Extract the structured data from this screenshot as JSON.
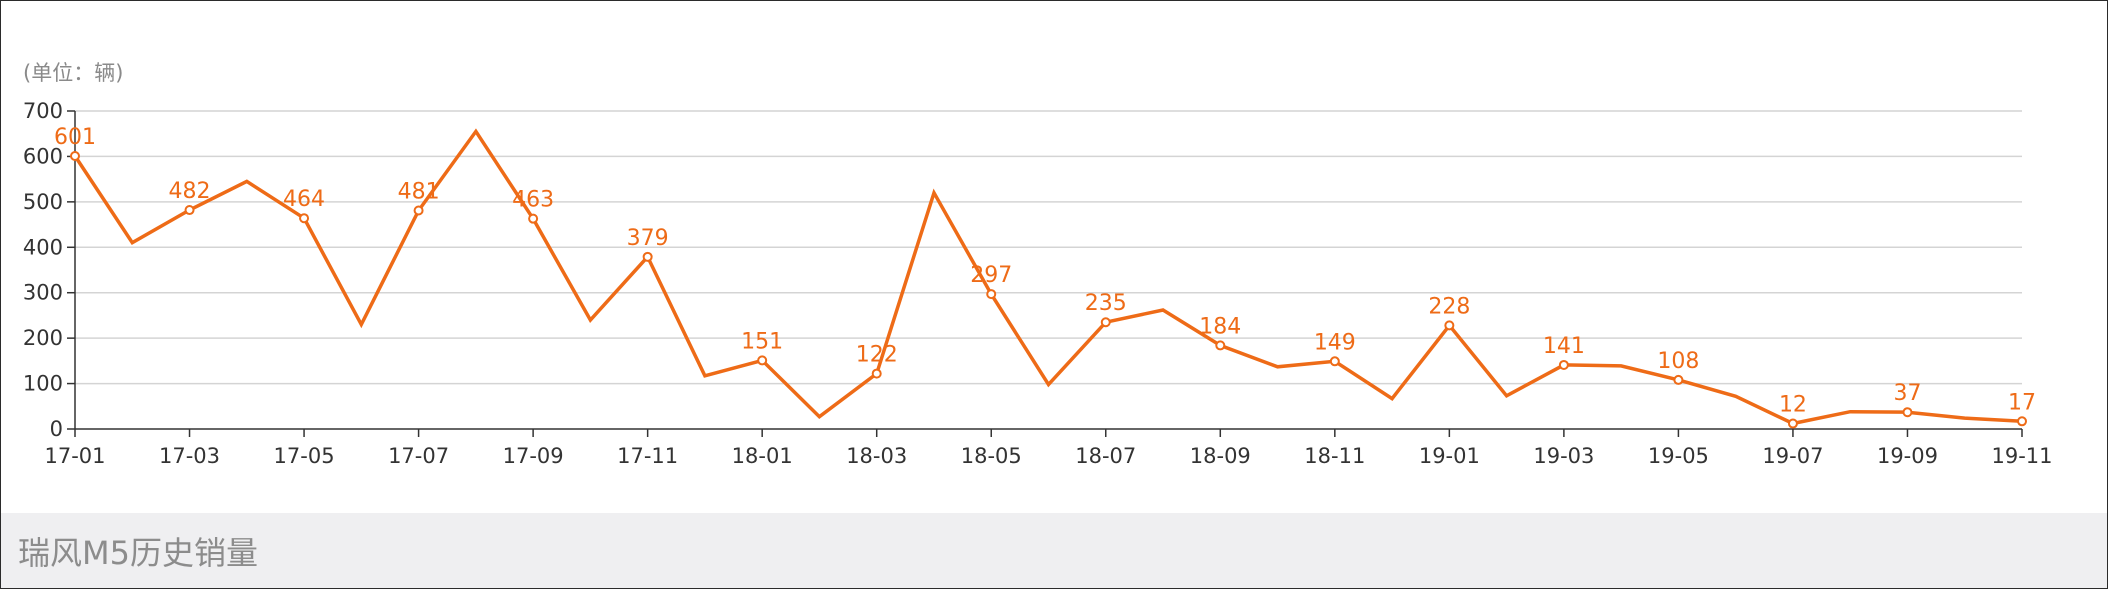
{
  "footer": {
    "caption": "瑞风M5历史销量"
  },
  "chart_data": {
    "type": "line",
    "unit_label": "(单位：辆)",
    "x": [
      "17-01",
      "17-02",
      "17-03",
      "17-04",
      "17-05",
      "17-06",
      "17-07",
      "17-08",
      "17-09",
      "17-10",
      "17-11",
      "17-12",
      "18-01",
      "18-02",
      "18-03",
      "18-04",
      "18-05",
      "18-06",
      "18-07",
      "18-08",
      "18-09",
      "18-10",
      "18-11",
      "18-12",
      "19-01",
      "19-02",
      "19-03",
      "19-04",
      "19-05",
      "19-06",
      "19-07",
      "19-08",
      "19-09",
      "19-10",
      "19-11"
    ],
    "values": [
      601,
      410,
      482,
      545,
      464,
      230,
      481,
      655,
      463,
      240,
      379,
      117,
      151,
      27,
      122,
      520,
      297,
      98,
      235,
      262,
      184,
      137,
      149,
      67,
      228,
      73,
      141,
      139,
      108,
      72,
      12,
      38,
      37,
      24,
      17
    ],
    "labeled_points": [
      "17-01",
      "17-03",
      "17-05",
      "17-07",
      "17-09",
      "17-11",
      "18-01",
      "18-03",
      "18-05",
      "18-07",
      "18-09",
      "18-11",
      "19-01",
      "19-03",
      "19-05",
      "19-07",
      "19-09",
      "19-11"
    ],
    "x_ticks": [
      "17-01",
      "17-03",
      "17-05",
      "17-07",
      "17-09",
      "17-11",
      "18-01",
      "18-03",
      "18-05",
      "18-07",
      "18-09",
      "18-11",
      "19-01",
      "19-03",
      "19-05",
      "19-07",
      "19-09",
      "19-11"
    ],
    "y_ticks": [
      0,
      100,
      200,
      300,
      400,
      500,
      600,
      700
    ],
    "ylim": [
      0,
      700
    ],
    "grid": true,
    "legend": "none",
    "line_color": "#ee6b17",
    "grid_color": "#d4d4d4",
    "axis_color": "#333333"
  }
}
